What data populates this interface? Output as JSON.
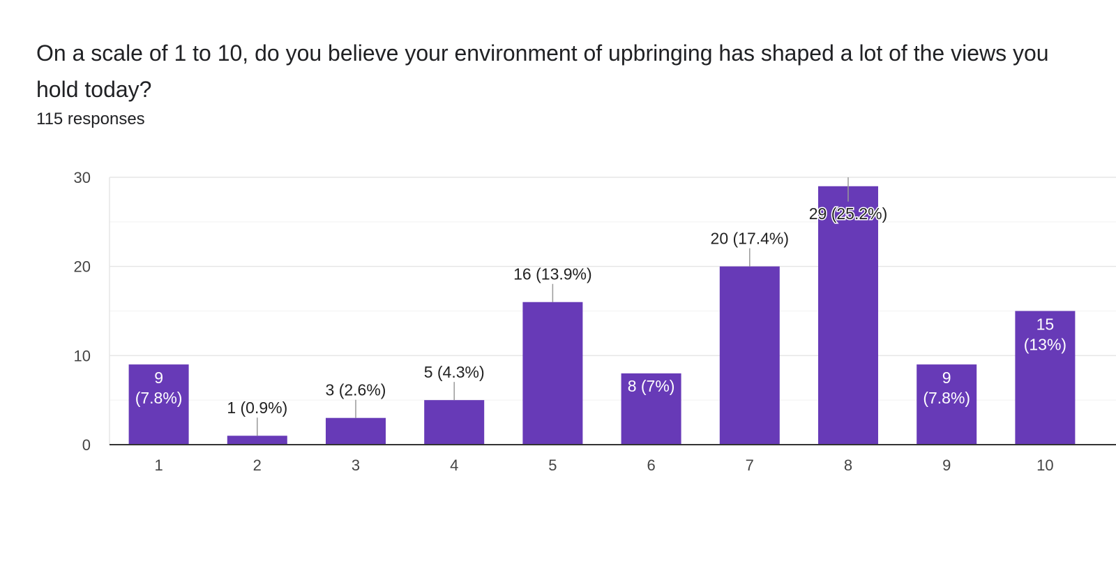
{
  "question": {
    "title": "On a scale of 1 to 10, do you believe your environment of upbringing has shaped a lot of the views you hold today?",
    "responses": "115 responses"
  },
  "colors": {
    "bar": "#673ab7",
    "grid": "#e6e6e6",
    "axis": "#333333",
    "leader": "#999999",
    "label_outside": "#222222",
    "label_inside": "#ffffff",
    "tick_text": "#444444"
  },
  "chart_data": {
    "type": "bar",
    "categories": [
      "1",
      "2",
      "3",
      "4",
      "5",
      "6",
      "7",
      "8",
      "9",
      "10"
    ],
    "values": [
      9,
      1,
      3,
      5,
      16,
      8,
      20,
      29,
      9,
      15
    ],
    "percent_labels": [
      "(7.8%)",
      "(0.9%)",
      "(2.6%)",
      "(4.3%)",
      "(13.9%)",
      "(7%)",
      "(17.4%)",
      "(25.2%)",
      "(7.8%)",
      "(13%)"
    ],
    "label_inside": [
      true,
      false,
      false,
      false,
      false,
      true,
      false,
      true,
      true,
      true
    ],
    "label_stacked": [
      true,
      false,
      false,
      false,
      false,
      false,
      false,
      false,
      true,
      true
    ],
    "ylim": [
      0,
      30
    ],
    "yticks": [
      0,
      10,
      20,
      30
    ],
    "title": "",
    "xlabel": "",
    "ylabel": "",
    "grid": true,
    "legend": "none"
  }
}
